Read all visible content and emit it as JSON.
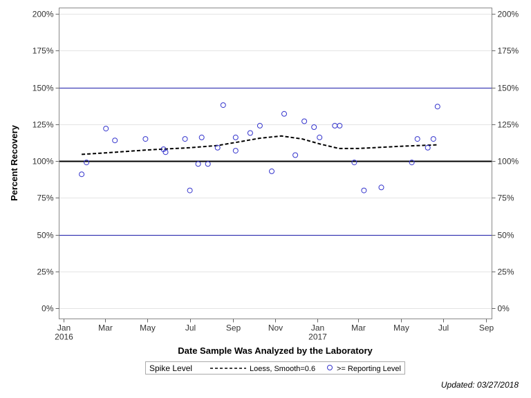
{
  "chart_data": {
    "type": "scatter",
    "xlabel": "Date Sample Was Analyzed by the Laboratory",
    "ylabel": "Percent Recovery",
    "x_axis": {
      "type": "date",
      "range": [
        "2016-01-01",
        "2017-09-01"
      ],
      "ticks": [
        {
          "date": "2016-01-01",
          "label": "Jan",
          "year": "2016"
        },
        {
          "date": "2016-03-01",
          "label": "Mar",
          "year": ""
        },
        {
          "date": "2016-05-01",
          "label": "May",
          "year": ""
        },
        {
          "date": "2016-07-01",
          "label": "Jul",
          "year": ""
        },
        {
          "date": "2016-09-01",
          "label": "Sep",
          "year": ""
        },
        {
          "date": "2016-11-01",
          "label": "Nov",
          "year": ""
        },
        {
          "date": "2017-01-01",
          "label": "Jan",
          "year": "2017"
        },
        {
          "date": "2017-03-01",
          "label": "Mar",
          "year": ""
        },
        {
          "date": "2017-05-01",
          "label": "May",
          "year": ""
        },
        {
          "date": "2017-07-01",
          "label": "Jul",
          "year": ""
        },
        {
          "date": "2017-09-01",
          "label": "Sep",
          "year": ""
        }
      ]
    },
    "y_axis": {
      "range": [
        0,
        200
      ],
      "ticks": [
        {
          "value": 0,
          "label": "0%"
        },
        {
          "value": 25,
          "label": "25%"
        },
        {
          "value": 50,
          "label": "50%"
        },
        {
          "value": 75,
          "label": "75%"
        },
        {
          "value": 100,
          "label": "100%"
        },
        {
          "value": 125,
          "label": "125%"
        },
        {
          "value": 150,
          "label": "150%"
        },
        {
          "value": 175,
          "label": "175%"
        },
        {
          "value": 200,
          "label": "200%"
        }
      ],
      "mirrored_right": true
    },
    "grid": true,
    "reference_lines": [
      {
        "value": 100,
        "color": "#000000",
        "style": "solid-thick"
      },
      {
        "value": 50,
        "color": "#1a1aa8",
        "style": "solid"
      },
      {
        "value": 150,
        "color": "#1a1aa8",
        "style": "solid"
      }
    ],
    "series": [
      {
        "name": ">= Reporting Level",
        "kind": "scatter",
        "marker": "open-circle",
        "color": "#3333cc",
        "points": [
          {
            "x": "2016-01-27",
            "y": 91
          },
          {
            "x": "2016-02-03",
            "y": 99
          },
          {
            "x": "2016-03-02",
            "y": 122
          },
          {
            "x": "2016-03-15",
            "y": 114
          },
          {
            "x": "2016-04-28",
            "y": 115
          },
          {
            "x": "2016-05-24",
            "y": 108
          },
          {
            "x": "2016-05-27",
            "y": 106
          },
          {
            "x": "2016-06-24",
            "y": 115
          },
          {
            "x": "2016-07-01",
            "y": 80
          },
          {
            "x": "2016-07-13",
            "y": 98
          },
          {
            "x": "2016-07-18",
            "y": 116
          },
          {
            "x": "2016-07-27",
            "y": 98
          },
          {
            "x": "2016-08-10",
            "y": 109
          },
          {
            "x": "2016-08-18",
            "y": 138
          },
          {
            "x": "2016-09-05",
            "y": 116
          },
          {
            "x": "2016-09-05",
            "y": 107
          },
          {
            "x": "2016-09-26",
            "y": 119
          },
          {
            "x": "2016-10-10",
            "y": 124
          },
          {
            "x": "2016-10-27",
            "y": 93
          },
          {
            "x": "2016-11-14",
            "y": 132
          },
          {
            "x": "2016-11-30",
            "y": 104
          },
          {
            "x": "2016-12-13",
            "y": 127
          },
          {
            "x": "2016-12-27",
            "y": 123
          },
          {
            "x": "2017-01-04",
            "y": 116
          },
          {
            "x": "2017-01-26",
            "y": 124
          },
          {
            "x": "2017-02-02",
            "y": 124
          },
          {
            "x": "2017-02-23",
            "y": 99
          },
          {
            "x": "2017-03-09",
            "y": 80
          },
          {
            "x": "2017-04-03",
            "y": 82
          },
          {
            "x": "2017-05-17",
            "y": 99
          },
          {
            "x": "2017-05-25",
            "y": 115
          },
          {
            "x": "2017-06-09",
            "y": 109
          },
          {
            "x": "2017-06-17",
            "y": 115
          },
          {
            "x": "2017-06-23",
            "y": 137
          }
        ]
      },
      {
        "name": "Loess, Smooth=0.6",
        "kind": "line",
        "style": "dashed",
        "color": "#000000",
        "points": [
          {
            "x": "2016-01-27",
            "y": 104.5
          },
          {
            "x": "2016-03-01",
            "y": 105.5
          },
          {
            "x": "2016-05-01",
            "y": 107.5
          },
          {
            "x": "2016-07-01",
            "y": 109
          },
          {
            "x": "2016-08-10",
            "y": 110.5
          },
          {
            "x": "2016-09-10",
            "y": 113
          },
          {
            "x": "2016-10-10",
            "y": 115.5
          },
          {
            "x": "2016-11-10",
            "y": 117
          },
          {
            "x": "2016-12-10",
            "y": 115
          },
          {
            "x": "2017-01-05",
            "y": 111.5
          },
          {
            "x": "2017-02-01",
            "y": 108.5
          },
          {
            "x": "2017-03-01",
            "y": 108.5
          },
          {
            "x": "2017-05-01",
            "y": 110
          },
          {
            "x": "2017-06-23",
            "y": 111
          }
        ]
      }
    ],
    "legend": {
      "placement": "bottom",
      "title": "Spike Level",
      "entries": [
        {
          "label": "Loess, Smooth=0.6",
          "symbol": "dashed-line"
        },
        {
          "label": ">= Reporting Level",
          "symbol": "open-circle"
        }
      ]
    },
    "footnote": "Updated: 03/27/2018",
    "colors": {
      "marker": "#3333cc",
      "limit_line": "#1a1aa8",
      "gridline": "#e4e4e4",
      "frame": "#888888"
    }
  }
}
